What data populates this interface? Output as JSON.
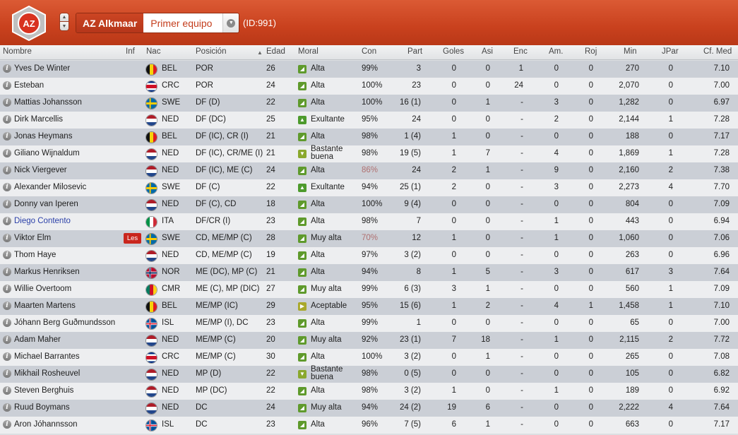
{
  "header": {
    "logo_text": "AZ",
    "team_name": "AZ Alkmaar",
    "squad": "Primer equipo",
    "team_id": "(ID:991)"
  },
  "columns": [
    "Nombre",
    "Inf",
    "Nac",
    "Posición",
    "Edad",
    "Moral",
    "Con",
    "Part",
    "Goles",
    "Asi",
    "Enc",
    "Am.",
    "Roj",
    "Min",
    "JPar",
    "Cf. Med"
  ],
  "moral_colors": {
    "Alta": "#5f9a2c",
    "Muy alta": "#5f9a2c",
    "Exultante": "#4d9a2c",
    "Bastante buena": "#8aa82d",
    "Aceptable": "#a9a82a"
  },
  "players": [
    {
      "name": "Yves De Winter",
      "inf": "",
      "flag": "BEL",
      "nat": "BEL",
      "pos": "POR",
      "age": "26",
      "moral": "Alta",
      "con": "99%",
      "part": "3",
      "goles": "0",
      "asi": "0",
      "enc": "1",
      "am": "0",
      "roj": "0",
      "min": "270",
      "jpar": "0",
      "cf": "7.10"
    },
    {
      "name": "Esteban",
      "inf": "",
      "flag": "CRC",
      "nat": "CRC",
      "pos": "POR",
      "age": "24",
      "moral": "Alta",
      "con": "100%",
      "part": "23",
      "goles": "0",
      "asi": "0",
      "enc": "24",
      "am": "0",
      "roj": "0",
      "min": "2,070",
      "jpar": "0",
      "cf": "7.00"
    },
    {
      "name": "Mattias Johansson",
      "inf": "",
      "flag": "SWE",
      "nat": "SWE",
      "pos": "DF (D)",
      "age": "22",
      "moral": "Alta",
      "con": "100%",
      "part": "16 (1)",
      "goles": "0",
      "asi": "1",
      "enc": "-",
      "am": "3",
      "roj": "0",
      "min": "1,282",
      "jpar": "0",
      "cf": "6.97"
    },
    {
      "name": "Dirk Marcellis",
      "inf": "",
      "flag": "NED",
      "nat": "NED",
      "pos": "DF (DC)",
      "age": "25",
      "moral": "Exultante",
      "con": "95%",
      "part": "24",
      "goles": "0",
      "asi": "0",
      "enc": "-",
      "am": "2",
      "roj": "0",
      "min": "2,144",
      "jpar": "1",
      "cf": "7.28"
    },
    {
      "name": "Jonas Heymans",
      "inf": "",
      "flag": "BEL",
      "nat": "BEL",
      "pos": "DF (IC), CR (I)",
      "age": "21",
      "moral": "Alta",
      "con": "98%",
      "part": "1 (4)",
      "goles": "1",
      "asi": "0",
      "enc": "-",
      "am": "0",
      "roj": "0",
      "min": "188",
      "jpar": "0",
      "cf": "7.17"
    },
    {
      "name": "Giliano Wijnaldum",
      "inf": "",
      "flag": "NED",
      "nat": "NED",
      "pos": "DF (IC), CR/ME (I)",
      "age": "21",
      "moral": "Bastante buena",
      "con": "98%",
      "part": "19 (5)",
      "goles": "1",
      "asi": "7",
      "enc": "-",
      "am": "4",
      "roj": "0",
      "min": "1,869",
      "jpar": "1",
      "cf": "7.28"
    },
    {
      "name": "Nick Viergever",
      "inf": "",
      "flag": "NED",
      "nat": "NED",
      "pos": "DF (IC), ME (C)",
      "age": "24",
      "moral": "Alta",
      "con": "86%",
      "part": "24",
      "goles": "2",
      "asi": "1",
      "enc": "-",
      "am": "9",
      "roj": "0",
      "min": "2,160",
      "jpar": "2",
      "cf": "7.38"
    },
    {
      "name": "Alexander Milosevic",
      "inf": "",
      "flag": "SWE",
      "nat": "SWE",
      "pos": "DF (C)",
      "age": "22",
      "moral": "Exultante",
      "con": "94%",
      "part": "25 (1)",
      "goles": "2",
      "asi": "0",
      "enc": "-",
      "am": "3",
      "roj": "0",
      "min": "2,273",
      "jpar": "4",
      "cf": "7.70"
    },
    {
      "name": "Donny van Iperen",
      "inf": "",
      "flag": "NED",
      "nat": "NED",
      "pos": "DF (C), CD",
      "age": "18",
      "moral": "Alta",
      "con": "100%",
      "part": "9 (4)",
      "goles": "0",
      "asi": "0",
      "enc": "-",
      "am": "0",
      "roj": "0",
      "min": "804",
      "jpar": "0",
      "cf": "7.09"
    },
    {
      "name": "Diego Contento",
      "inf": "",
      "flag": "ITA",
      "nat": "ITA",
      "pos": "DF/CR (I)",
      "age": "23",
      "moral": "Alta",
      "con": "98%",
      "part": "7",
      "goles": "0",
      "asi": "0",
      "enc": "-",
      "am": "1",
      "roj": "0",
      "min": "443",
      "jpar": "0",
      "cf": "6.94"
    },
    {
      "name": "Viktor Elm",
      "inf": "Les",
      "flag": "SWE",
      "nat": "SWE",
      "pos": "CD, ME/MP (C)",
      "age": "28",
      "moral": "Muy alta",
      "con": "70%",
      "part": "12",
      "goles": "1",
      "asi": "0",
      "enc": "-",
      "am": "1",
      "roj": "0",
      "min": "1,060",
      "jpar": "0",
      "cf": "7.06"
    },
    {
      "name": "Thom Haye",
      "inf": "",
      "flag": "NED",
      "nat": "NED",
      "pos": "CD, ME/MP (C)",
      "age": "19",
      "moral": "Alta",
      "con": "97%",
      "part": "3 (2)",
      "goles": "0",
      "asi": "0",
      "enc": "-",
      "am": "0",
      "roj": "0",
      "min": "263",
      "jpar": "0",
      "cf": "6.96"
    },
    {
      "name": "Markus Henriksen",
      "inf": "",
      "flag": "NOR",
      "nat": "NOR",
      "pos": "ME (DC), MP (C)",
      "age": "21",
      "moral": "Alta",
      "con": "94%",
      "part": "8",
      "goles": "1",
      "asi": "5",
      "enc": "-",
      "am": "3",
      "roj": "0",
      "min": "617",
      "jpar": "3",
      "cf": "7.64"
    },
    {
      "name": "Willie Overtoom",
      "inf": "",
      "flag": "CMR",
      "nat": "CMR",
      "pos": "ME (C), MP (DIC)",
      "age": "27",
      "moral": "Muy alta",
      "con": "99%",
      "part": "6 (3)",
      "goles": "3",
      "asi": "1",
      "enc": "-",
      "am": "0",
      "roj": "0",
      "min": "560",
      "jpar": "1",
      "cf": "7.09"
    },
    {
      "name": "Maarten Martens",
      "inf": "",
      "flag": "BEL",
      "nat": "BEL",
      "pos": "ME/MP (IC)",
      "age": "29",
      "moral": "Aceptable",
      "con": "95%",
      "part": "15 (6)",
      "goles": "1",
      "asi": "2",
      "enc": "-",
      "am": "4",
      "roj": "1",
      "min": "1,458",
      "jpar": "1",
      "cf": "7.10"
    },
    {
      "name": "Jóhann Berg Guðmundsson",
      "inf": "",
      "flag": "ISL",
      "nat": "ISL",
      "pos": "ME/MP (I), DC",
      "age": "23",
      "moral": "Alta",
      "con": "99%",
      "part": "1",
      "goles": "0",
      "asi": "0",
      "enc": "-",
      "am": "0",
      "roj": "0",
      "min": "65",
      "jpar": "0",
      "cf": "7.00"
    },
    {
      "name": "Adam Maher",
      "inf": "",
      "flag": "NED",
      "nat": "NED",
      "pos": "ME/MP (C)",
      "age": "20",
      "moral": "Muy alta",
      "con": "92%",
      "part": "23 (1)",
      "goles": "7",
      "asi": "18",
      "enc": "-",
      "am": "1",
      "roj": "0",
      "min": "2,115",
      "jpar": "2",
      "cf": "7.72"
    },
    {
      "name": "Michael Barrantes",
      "inf": "",
      "flag": "CRC",
      "nat": "CRC",
      "pos": "ME/MP (C)",
      "age": "30",
      "moral": "Alta",
      "con": "100%",
      "part": "3 (2)",
      "goles": "0",
      "asi": "1",
      "enc": "-",
      "am": "0",
      "roj": "0",
      "min": "265",
      "jpar": "0",
      "cf": "7.08"
    },
    {
      "name": "Mikhail Rosheuvel",
      "inf": "",
      "flag": "NED",
      "nat": "NED",
      "pos": "MP (D)",
      "age": "22",
      "moral": "Bastante buena",
      "con": "98%",
      "part": "0 (5)",
      "goles": "0",
      "asi": "0",
      "enc": "-",
      "am": "0",
      "roj": "0",
      "min": "105",
      "jpar": "0",
      "cf": "6.82"
    },
    {
      "name": "Steven Berghuis",
      "inf": "",
      "flag": "NED",
      "nat": "NED",
      "pos": "MP (DC)",
      "age": "22",
      "moral": "Alta",
      "con": "98%",
      "part": "3 (2)",
      "goles": "1",
      "asi": "0",
      "enc": "-",
      "am": "1",
      "roj": "0",
      "min": "189",
      "jpar": "0",
      "cf": "6.92"
    },
    {
      "name": "Ruud Boymans",
      "inf": "",
      "flag": "NED",
      "nat": "NED",
      "pos": "DC",
      "age": "24",
      "moral": "Muy alta",
      "con": "94%",
      "part": "24 (2)",
      "goles": "19",
      "asi": "6",
      "enc": "-",
      "am": "0",
      "roj": "0",
      "min": "2,222",
      "jpar": "4",
      "cf": "7.64"
    },
    {
      "name": "Aron Jóhannsson",
      "inf": "",
      "flag": "ISL",
      "nat": "ISL",
      "pos": "DC",
      "age": "23",
      "moral": "Alta",
      "con": "96%",
      "part": "7 (5)",
      "goles": "6",
      "asi": "1",
      "enc": "-",
      "am": "0",
      "roj": "0",
      "min": "663",
      "jpar": "0",
      "cf": "7.17"
    }
  ]
}
